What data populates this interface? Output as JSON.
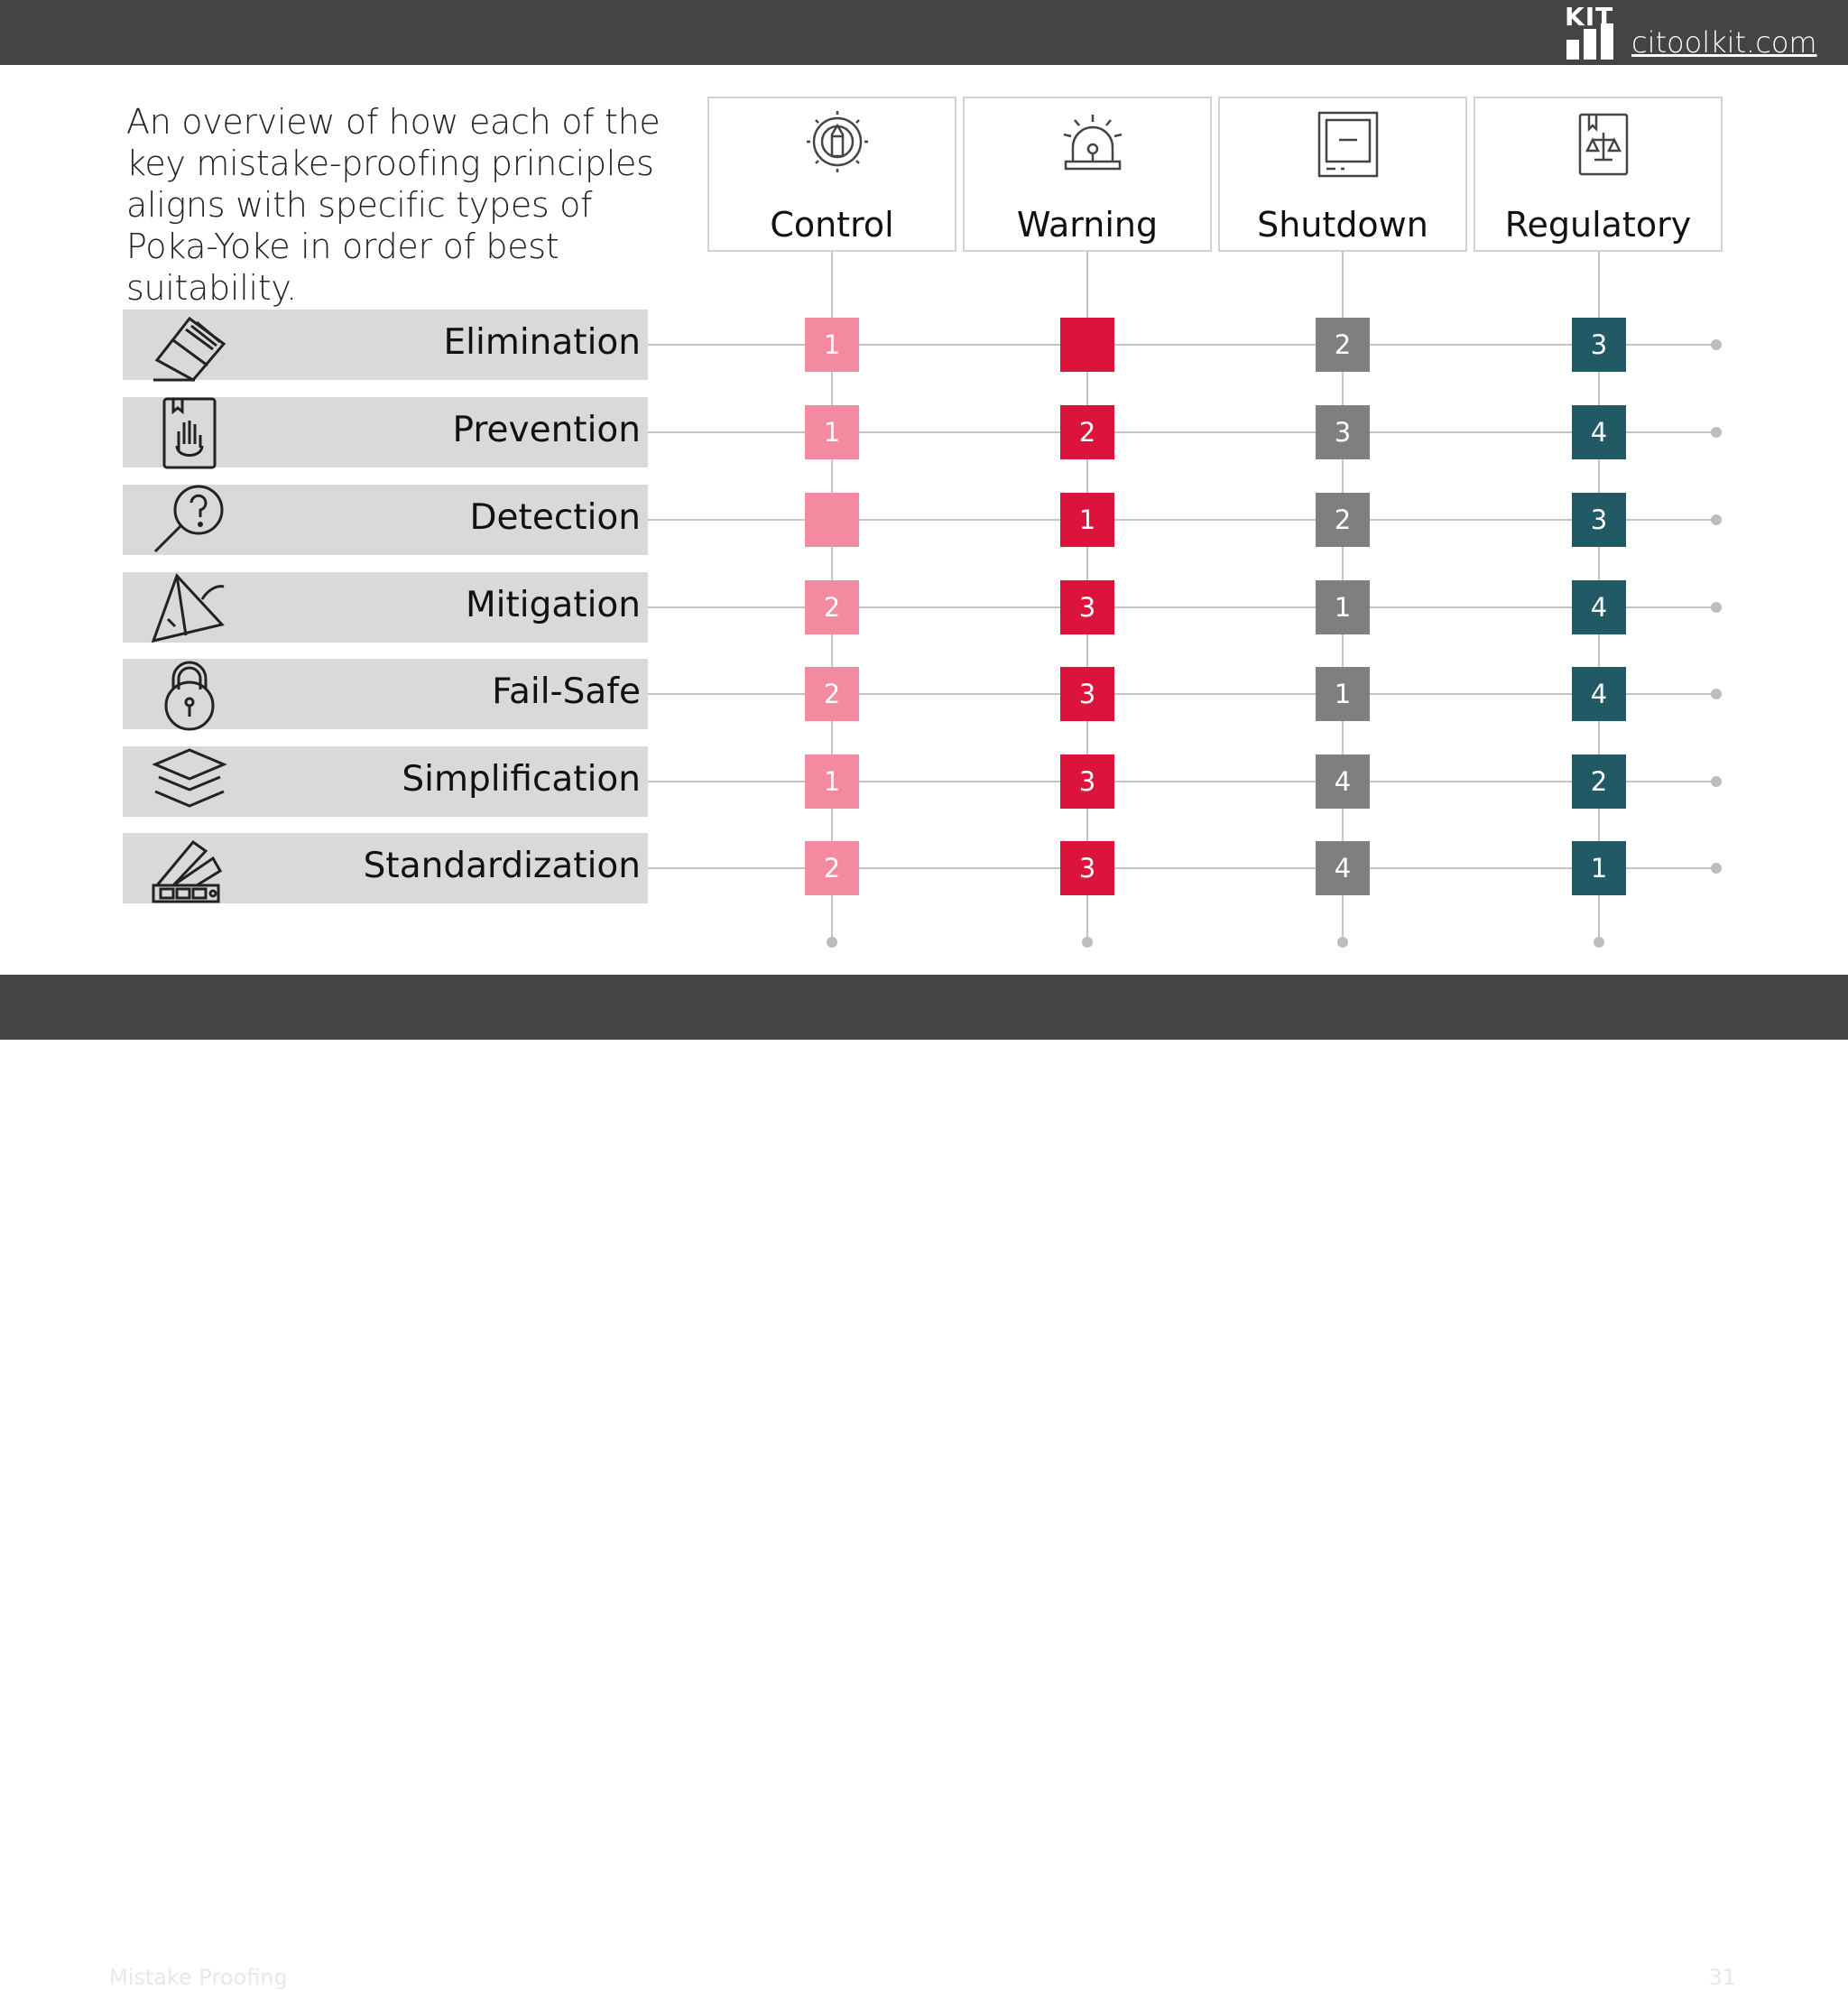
{
  "header": {
    "logo_text": "KIT",
    "site": "citoolkit.com"
  },
  "intro": "An overview of how each of the key mistake-proofing principles aligns with specific types of Poka-Yoke in order of best suitability.",
  "columns": [
    {
      "label": "Control",
      "icon": "gear-pencil-icon",
      "color": "#f48aa0"
    },
    {
      "label": "Warning",
      "icon": "alarm-siren-icon",
      "color": "#dc143c"
    },
    {
      "label": "Shutdown",
      "icon": "power-panel-icon",
      "color": "#7f7f7f"
    },
    {
      "label": "Regulatory",
      "icon": "scales-book-icon",
      "color": "#215a64"
    }
  ],
  "rows": [
    {
      "label": "Elimination",
      "icon": "eraser-icon",
      "ranks": [
        "1",
        "",
        "2",
        "3"
      ]
    },
    {
      "label": "Prevention",
      "icon": "hand-stop-icon",
      "ranks": [
        "1",
        "2",
        "3",
        "4"
      ]
    },
    {
      "label": "Detection",
      "icon": "magnifier-question-icon",
      "ranks": [
        "",
        "1",
        "2",
        "3"
      ]
    },
    {
      "label": "Mitigation",
      "icon": "umbrella-icon",
      "ranks": [
        "2",
        "3",
        "1",
        "4"
      ]
    },
    {
      "label": "Fail-Safe",
      "icon": "padlock-icon",
      "ranks": [
        "2",
        "3",
        "1",
        "4"
      ]
    },
    {
      "label": "Simplification",
      "icon": "layers-icon",
      "ranks": [
        "1",
        "3",
        "4",
        "2"
      ]
    },
    {
      "label": "Standardization",
      "icon": "color-swatch-icon",
      "ranks": [
        "2",
        "3",
        "4",
        "1"
      ]
    }
  ],
  "footer": {
    "title": "Mistake Proofing",
    "page": "31"
  }
}
